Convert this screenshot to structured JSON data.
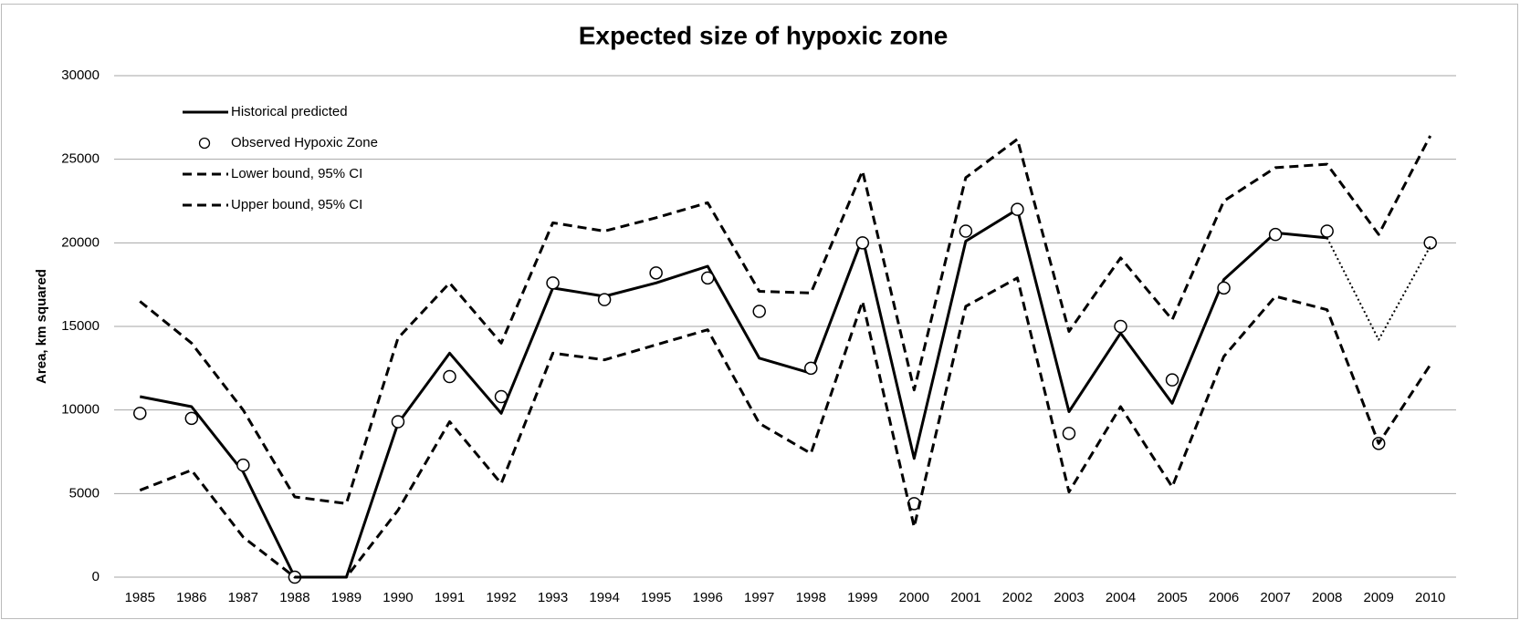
{
  "chart_data": {
    "type": "line",
    "title": "Expected size of hypoxic zone",
    "y_label": "Area, km squared",
    "categories": [
      "1985",
      "1986",
      "1987",
      "1988",
      "1989",
      "1990",
      "1991",
      "1992",
      "1993",
      "1994",
      "1995",
      "1996",
      "1997",
      "1998",
      "1999",
      "2000",
      "2001",
      "2002",
      "2003",
      "2004",
      "2005",
      "2006",
      "2007",
      "2008",
      "2009",
      "2010"
    ],
    "ylim": [
      0,
      30000
    ],
    "yticks": [
      0,
      5000,
      10000,
      15000,
      20000,
      25000,
      30000
    ],
    "grid": true,
    "legend": "upper-left",
    "series": [
      {
        "name": "Historical predicted",
        "color": "#000000",
        "style": "solid",
        "values": [
          10800,
          10200,
          6300,
          0,
          0,
          9200,
          13400,
          9800,
          17300,
          16800,
          17600,
          18600,
          13100,
          12200,
          20300,
          7100,
          20100,
          22000,
          9900,
          14600,
          10400,
          17800,
          20600,
          20300,
          null,
          null
        ]
      },
      {
        "name": "Observed Hypoxic Zone",
        "color": "#000000",
        "style": "marker",
        "values": [
          9800,
          9500,
          6700,
          0,
          null,
          9300,
          12000,
          10800,
          17600,
          16600,
          18200,
          17900,
          15900,
          12500,
          20000,
          4400,
          20700,
          22000,
          8600,
          15000,
          11800,
          17300,
          20500,
          20700,
          8000,
          20000
        ]
      },
      {
        "name": "Lower bound, 95% CI",
        "color": "#000000",
        "style": "dashed",
        "values": [
          5200,
          6400,
          2400,
          0,
          0,
          4000,
          9300,
          5600,
          13400,
          13000,
          13900,
          14800,
          9200,
          7400,
          16500,
          3000,
          16200,
          17900,
          5100,
          10200,
          5400,
          13200,
          16800,
          16000,
          8000,
          12700
        ]
      },
      {
        "name": "Upper bound, 95% CI",
        "color": "#000000",
        "style": "dashed",
        "values": [
          16500,
          14000,
          10000,
          4800,
          4400,
          14300,
          17600,
          14000,
          21200,
          20700,
          21500,
          22400,
          17100,
          17000,
          24300,
          11200,
          23900,
          26200,
          14700,
          19100,
          15400,
          22500,
          24500,
          24700,
          20500,
          26400
        ]
      },
      {
        "color": "#000000",
        "style": "dotted",
        "values": [
          null,
          null,
          null,
          null,
          null,
          null,
          null,
          null,
          null,
          null,
          null,
          null,
          null,
          null,
          null,
          null,
          null,
          null,
          null,
          null,
          null,
          null,
          null,
          20300,
          14200,
          19800
        ]
      }
    ]
  }
}
